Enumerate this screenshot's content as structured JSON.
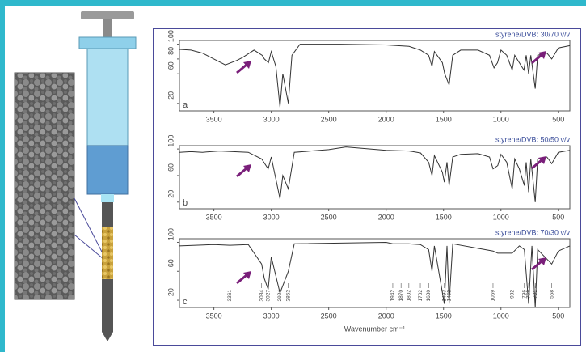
{
  "chart_data": [
    {
      "type": "line",
      "title": "styrene/DVB: 30/70 v/v",
      "panel_label": "a",
      "color": "#333333",
      "xlim": [
        3800,
        400
      ],
      "ylim": [
        10,
        105
      ],
      "xticks": [
        3500,
        3000,
        2500,
        2000,
        1500,
        1000,
        500
      ],
      "yticks": [
        20,
        60,
        80,
        100
      ],
      "x": [
        3800,
        3700,
        3600,
        3500,
        3400,
        3300,
        3250,
        3150,
        3080,
        3060,
        3025,
        3000,
        2960,
        2924,
        2900,
        2852,
        2820,
        2750,
        2400,
        2000,
        1800,
        1700,
        1630,
        1600,
        1580,
        1510,
        1490,
        1452,
        1420,
        1350,
        1200,
        1100,
        1060,
        1030,
        1000,
        950,
        902,
        880,
        840,
        800,
        780,
        759,
        740,
        701,
        680,
        600,
        558,
        500,
        400
      ],
      "values": [
        93,
        92,
        88,
        80,
        72,
        78,
        82,
        92,
        85,
        80,
        75,
        90,
        70,
        15,
        60,
        20,
        85,
        100,
        100,
        99,
        97,
        92,
        85,
        70,
        90,
        75,
        60,
        45,
        85,
        92,
        92,
        85,
        68,
        75,
        92,
        85,
        65,
        85,
        75,
        65,
        85,
        60,
        85,
        40,
        85,
        88,
        80,
        95,
        98
      ]
    },
    {
      "type": "line",
      "title": "styrene/DVB: 50/50 v/v",
      "panel_label": "b",
      "color": "#333333",
      "xlim": [
        3800,
        400
      ],
      "ylim": [
        10,
        105
      ],
      "xticks": [
        3500,
        3000,
        2500,
        2000,
        1500,
        1000,
        500
      ],
      "yticks": [
        20,
        60,
        100
      ],
      "x": [
        3800,
        3700,
        3600,
        3450,
        3200,
        3084,
        3027,
        3000,
        2924,
        2900,
        2852,
        2800,
        2500,
        2350,
        2000,
        1800,
        1700,
        1630,
        1600,
        1580,
        1510,
        1493,
        1470,
        1452,
        1420,
        1350,
        1200,
        1100,
        1069,
        1028,
        1000,
        950,
        902,
        880,
        840,
        796,
        780,
        759,
        740,
        701,
        680,
        600,
        558,
        500,
        400
      ],
      "values": [
        95,
        96,
        95,
        97,
        95,
        85,
        70,
        88,
        25,
        60,
        40,
        95,
        99,
        103,
        98,
        97,
        94,
        80,
        60,
        90,
        65,
        50,
        80,
        45,
        88,
        92,
        93,
        88,
        70,
        75,
        92,
        80,
        40,
        85,
        70,
        45,
        80,
        35,
        85,
        20,
        85,
        88,
        78,
        95,
        98
      ]
    },
    {
      "type": "line",
      "title": "styrene/DVB: 70/30 v/v",
      "panel_label": "c",
      "color": "#333333",
      "xlim": [
        3800,
        400
      ],
      "ylim": [
        10,
        105
      ],
      "xticks": [
        3500,
        3000,
        2500,
        2000,
        1500,
        1000,
        500
      ],
      "yticks": [
        20,
        60,
        100
      ],
      "xlabel": "Wavenumber cm⁻¹",
      "x": [
        3800,
        3500,
        3361,
        3200,
        3084,
        3061,
        3027,
        3000,
        2924,
        2852,
        2800,
        2000,
        1942,
        1870,
        1802,
        1702,
        1630,
        1600,
        1580,
        1493,
        1470,
        1452,
        1420,
        1069,
        1028,
        902,
        840,
        796,
        759,
        730,
        701,
        680,
        558,
        500,
        400
      ],
      "values": [
        95,
        97,
        96,
        97,
        70,
        50,
        35,
        80,
        30,
        60,
        98,
        100,
        98,
        98,
        98,
        97,
        90,
        60,
        95,
        15,
        95,
        15,
        98,
        88,
        85,
        85,
        95,
        90,
        15,
        95,
        10,
        90,
        70,
        88,
        95
      ],
      "peak_labels": [
        3361,
        3084,
        3027,
        2924,
        2852,
        1942,
        1870,
        1802,
        1702,
        1630,
        1493,
        1452,
        1069,
        902,
        796,
        759,
        701,
        558
      ]
    }
  ]
}
